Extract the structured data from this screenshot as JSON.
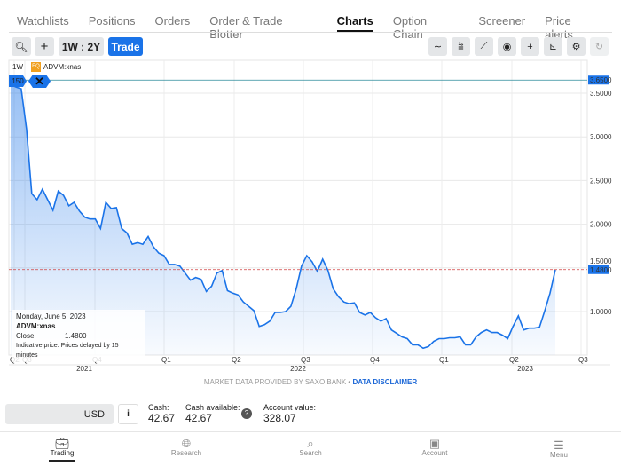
{
  "tabs": [
    {
      "label": "Watchlists"
    },
    {
      "label": "Positions"
    },
    {
      "label": "Orders"
    },
    {
      "label": "Order & Trade Blotter"
    },
    {
      "label": "Charts",
      "active": true
    },
    {
      "label": "Option Chain"
    },
    {
      "label": "Screener"
    },
    {
      "label": "Price alerts"
    }
  ],
  "toolbar": {
    "search_icon": "search-icon",
    "add_icon": "plus-icon",
    "period": "1W : 2Y",
    "trade": "Trade",
    "tools": [
      "line-type-icon",
      "indicators-icon",
      "draw-line-icon",
      "eye-icon",
      "crosshair-icon",
      "axis-icon",
      "gear-icon",
      "refresh-icon"
    ]
  },
  "chart": {
    "interval": "1W",
    "badge": "EQ",
    "symbol": "ADVM:xnas",
    "volume_tag": "150",
    "current_price_label": "3.6500",
    "last_price_label": "1.4800",
    "tooltip": {
      "date": "Monday, June 5, 2023",
      "symbol": "ADVM:xnas",
      "close_label": "Close",
      "close_value": "1.4800",
      "note": "Indicative price. Prices delayed by 15 minutes"
    },
    "accent": "#1a73e8"
  },
  "chart_data": {
    "type": "area",
    "ylim": [
      0.5,
      3.72
    ],
    "yticks": [
      "3.5000",
      "3.0000",
      "2.5000",
      "2.0000",
      "1.5000",
      "1.0000"
    ],
    "quarter_ticks": [
      "Q2",
      "Q3",
      "Q4",
      "Q1",
      "Q2",
      "Q3",
      "Q4",
      "Q1",
      "Q2",
      "Q3"
    ],
    "years": [
      "2021",
      "2022",
      "2023"
    ],
    "reference_lines": [
      3.65,
      1.48
    ],
    "values": [
      3.6,
      3.57,
      3.55,
      3.09,
      2.35,
      2.28,
      2.4,
      2.28,
      2.16,
      2.38,
      2.33,
      2.21,
      2.25,
      2.15,
      2.08,
      2.06,
      2.06,
      1.95,
      2.25,
      2.18,
      2.19,
      1.95,
      1.9,
      1.77,
      1.79,
      1.77,
      1.86,
      1.74,
      1.67,
      1.64,
      1.54,
      1.54,
      1.52,
      1.44,
      1.36,
      1.39,
      1.37,
      1.23,
      1.29,
      1.44,
      1.47,
      1.24,
      1.21,
      1.19,
      1.11,
      1.06,
      1.01,
      0.83,
      0.85,
      0.89,
      0.99,
      0.99,
      1.0,
      1.06,
      1.26,
      1.52,
      1.64,
      1.57,
      1.46,
      1.6,
      1.47,
      1.26,
      1.17,
      1.11,
      1.09,
      1.1,
      0.99,
      0.96,
      0.99,
      0.93,
      0.89,
      0.92,
      0.79,
      0.75,
      0.71,
      0.69,
      0.62,
      0.62,
      0.58,
      0.6,
      0.66,
      0.69,
      0.69,
      0.7,
      0.7,
      0.71,
      0.62,
      0.62,
      0.71,
      0.76,
      0.79,
      0.76,
      0.76,
      0.73,
      0.69,
      0.83,
      0.95,
      0.79,
      0.81,
      0.81,
      0.82,
      1.01,
      1.21,
      1.48
    ]
  },
  "footer": {
    "text": "MARKET DATA PROVIDED BY SAXO BANK •",
    "link": "DATA DISCLAIMER"
  },
  "account": {
    "currency": "USD",
    "info": "i",
    "cash_label": "Cash:",
    "cash": "42.67",
    "avail_label": "Cash available:",
    "avail": "42.67",
    "help": "?",
    "value_label": "Account value:",
    "value": "328.07"
  },
  "nav": [
    {
      "label": "Trading",
      "icon": "briefcase-icon",
      "active": true
    },
    {
      "label": "Research",
      "icon": "globe-icon"
    },
    {
      "label": "Search",
      "icon": "search-icon"
    },
    {
      "label": "Account",
      "icon": "wallet-icon"
    },
    {
      "label": "Menu",
      "icon": "menu-icon"
    }
  ]
}
